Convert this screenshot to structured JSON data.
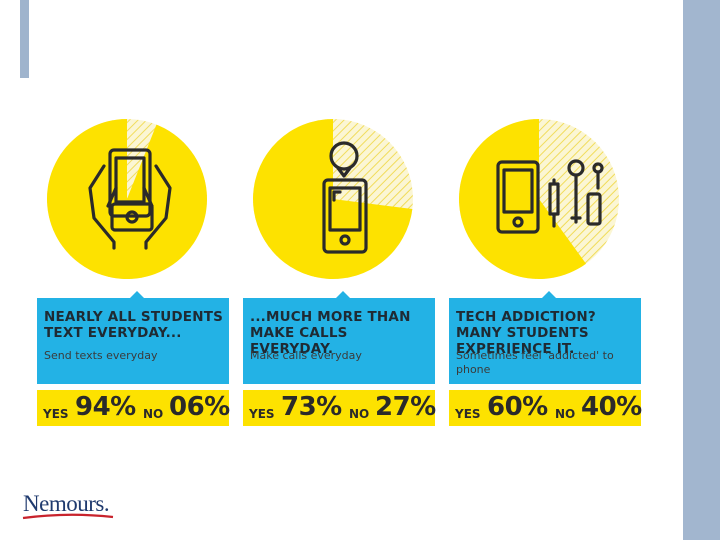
{
  "chart_data": [
    {
      "type": "pie",
      "headline": "NEARLY ALL STUDENTS TEXT EVERYDAY...",
      "subtext": "Send texts everyday",
      "slices": [
        {
          "label": "YES",
          "value": 94,
          "display": "94%"
        },
        {
          "label": "NO",
          "value": 6,
          "display": "06%"
        }
      ],
      "icon": "hands-holding-phone-icon"
    },
    {
      "type": "pie",
      "headline": "...MUCH MORE THAN MAKE CALLS EVERYDAY.",
      "subtext": "Make calls everyday",
      "slices": [
        {
          "label": "YES",
          "value": 73,
          "display": "73%"
        },
        {
          "label": "NO",
          "value": 27,
          "display": "27%"
        }
      ],
      "icon": "phone-speech-bubble-icon"
    },
    {
      "type": "pie",
      "headline": "TECH ADDICTION? MANY STUDENTS EXPERIENCE IT.",
      "subtext": "Sometimes feel 'addicted' to phone",
      "slices": [
        {
          "label": "YES",
          "value": 60,
          "display": "60%"
        },
        {
          "label": "NO",
          "value": 40,
          "display": "40%"
        }
      ],
      "icon": "phone-syringe-icon"
    }
  ],
  "colors": {
    "yes": "#fde200",
    "no_hatch": "#f6e57a",
    "box": "#23b2e5",
    "ink": "#2a2a2a",
    "accent": "#a2b6cf"
  },
  "logo": {
    "text": "Nemours."
  }
}
